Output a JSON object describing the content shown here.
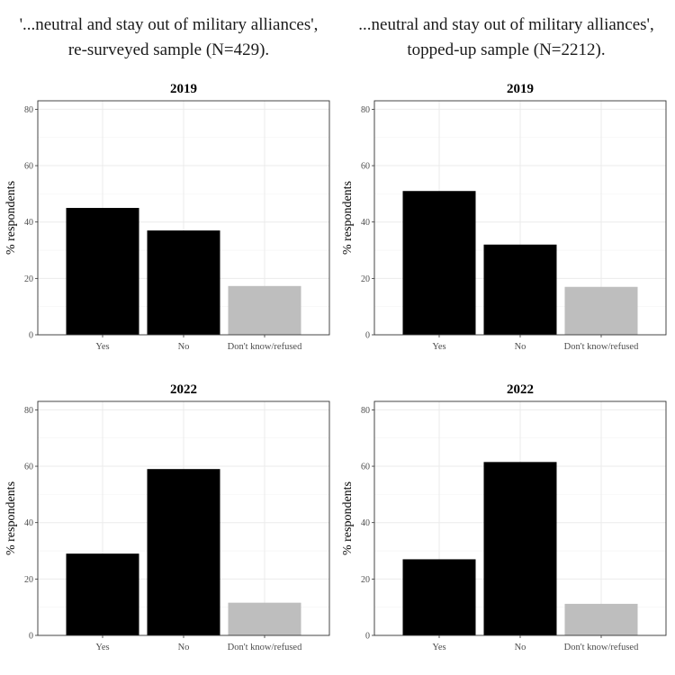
{
  "column_titles": [
    {
      "line1": "'...neutral and stay out of military alliances',",
      "line2": "re-surveyed sample (N=429)."
    },
    {
      "line1": "...neutral and stay out of military alliances',",
      "line2": "topped-up sample (N=2212)."
    }
  ],
  "colors": {
    "yes_no": "#000000",
    "dont_know": "#bebebe",
    "grid": "#ebebeb",
    "panel_border": "#333333"
  },
  "chart_data": [
    {
      "type": "bar",
      "title": "2019",
      "ylabel": "% respondents",
      "categories": [
        "Yes",
        "No",
        "Don't know/refused"
      ],
      "values": [
        45,
        37,
        17.3
      ],
      "ylim": [
        0,
        83
      ],
      "yticks": [
        "0",
        "20",
        "40",
        "60",
        "80"
      ],
      "grid": true
    },
    {
      "type": "bar",
      "title": "2019",
      "ylabel": "% respondents",
      "categories": [
        "Yes",
        "No",
        "Don't know/refused"
      ],
      "values": [
        51,
        32,
        17
      ],
      "ylim": [
        0,
        83
      ],
      "yticks": [
        "0",
        "20",
        "40",
        "60",
        "80"
      ],
      "grid": true
    },
    {
      "type": "bar",
      "title": "2022",
      "ylabel": "% respondents",
      "categories": [
        "Yes",
        "No",
        "Don't know/refused"
      ],
      "values": [
        29,
        59,
        11.6
      ],
      "ylim": [
        0,
        83
      ],
      "yticks": [
        "0",
        "20",
        "40",
        "60",
        "80"
      ],
      "grid": true
    },
    {
      "type": "bar",
      "title": "2022",
      "ylabel": "% respondents",
      "categories": [
        "Yes",
        "No",
        "Don't know/refused"
      ],
      "values": [
        27,
        61.5,
        11.2
      ],
      "ylim": [
        0,
        83
      ],
      "yticks": [
        "0",
        "20",
        "40",
        "60",
        "80"
      ],
      "grid": true
    }
  ]
}
